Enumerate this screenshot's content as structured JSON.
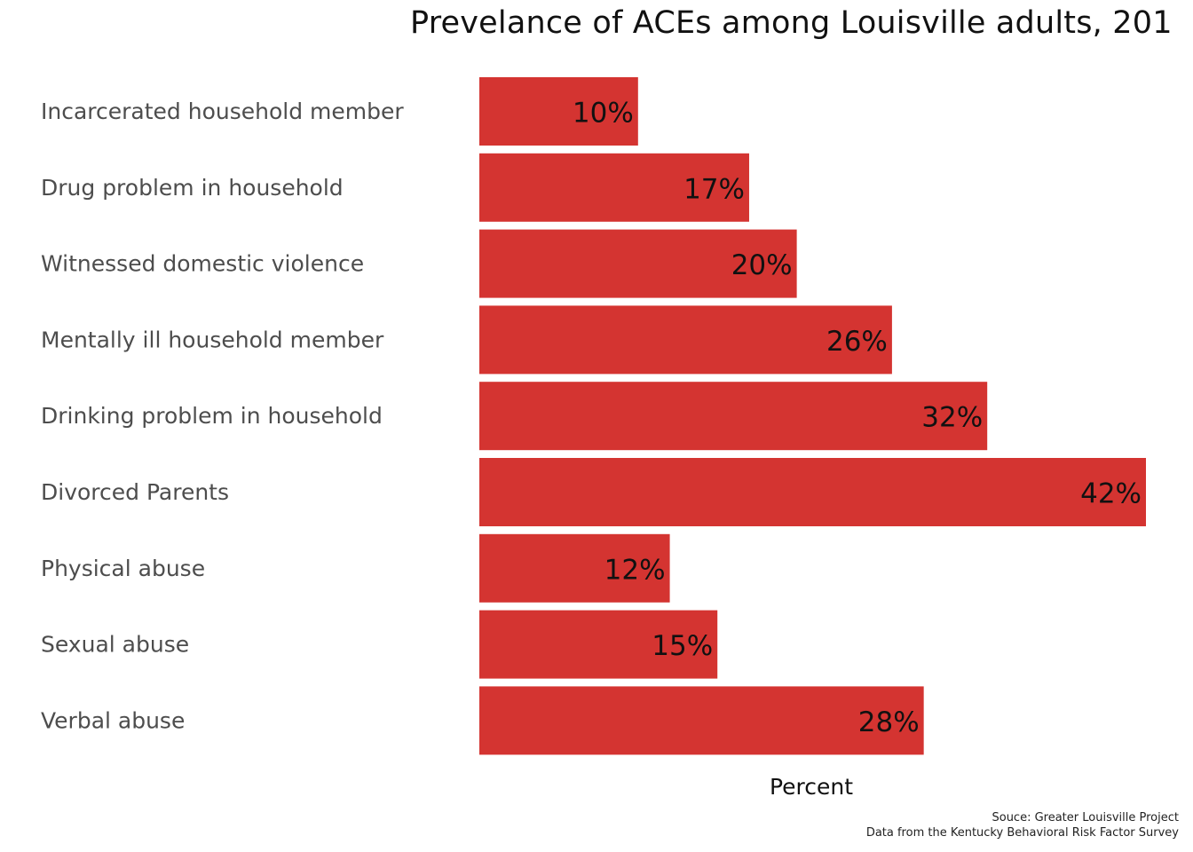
{
  "chart_data": {
    "type": "bar",
    "orientation": "horizontal",
    "title": "Prevelance of ACEs among Louisville adults, 201",
    "xlabel": "Percent",
    "ylabel": "",
    "categories": [
      "Incarcerated household member",
      "Drug problem in household",
      "Witnessed domestic violence",
      "Mentally ill household member",
      "Drinking problem in household",
      "Divorced Parents",
      "Physical abuse",
      "Sexual abuse",
      "Verbal abuse"
    ],
    "values": [
      10,
      17,
      20,
      26,
      32,
      42,
      12,
      15,
      28
    ],
    "data_labels": [
      "10%",
      "17%",
      "20%",
      "26%",
      "32%",
      "42%",
      "12%",
      "15%",
      "28%"
    ],
    "xlim": [
      0,
      42
    ],
    "grid": false,
    "legend": "none",
    "bar_color": "#d43431",
    "caption": {
      "line1": "Souce: Greater Louisville Project",
      "line2": "Data from the Kentucky Behavioral Risk Factor Survey"
    }
  }
}
